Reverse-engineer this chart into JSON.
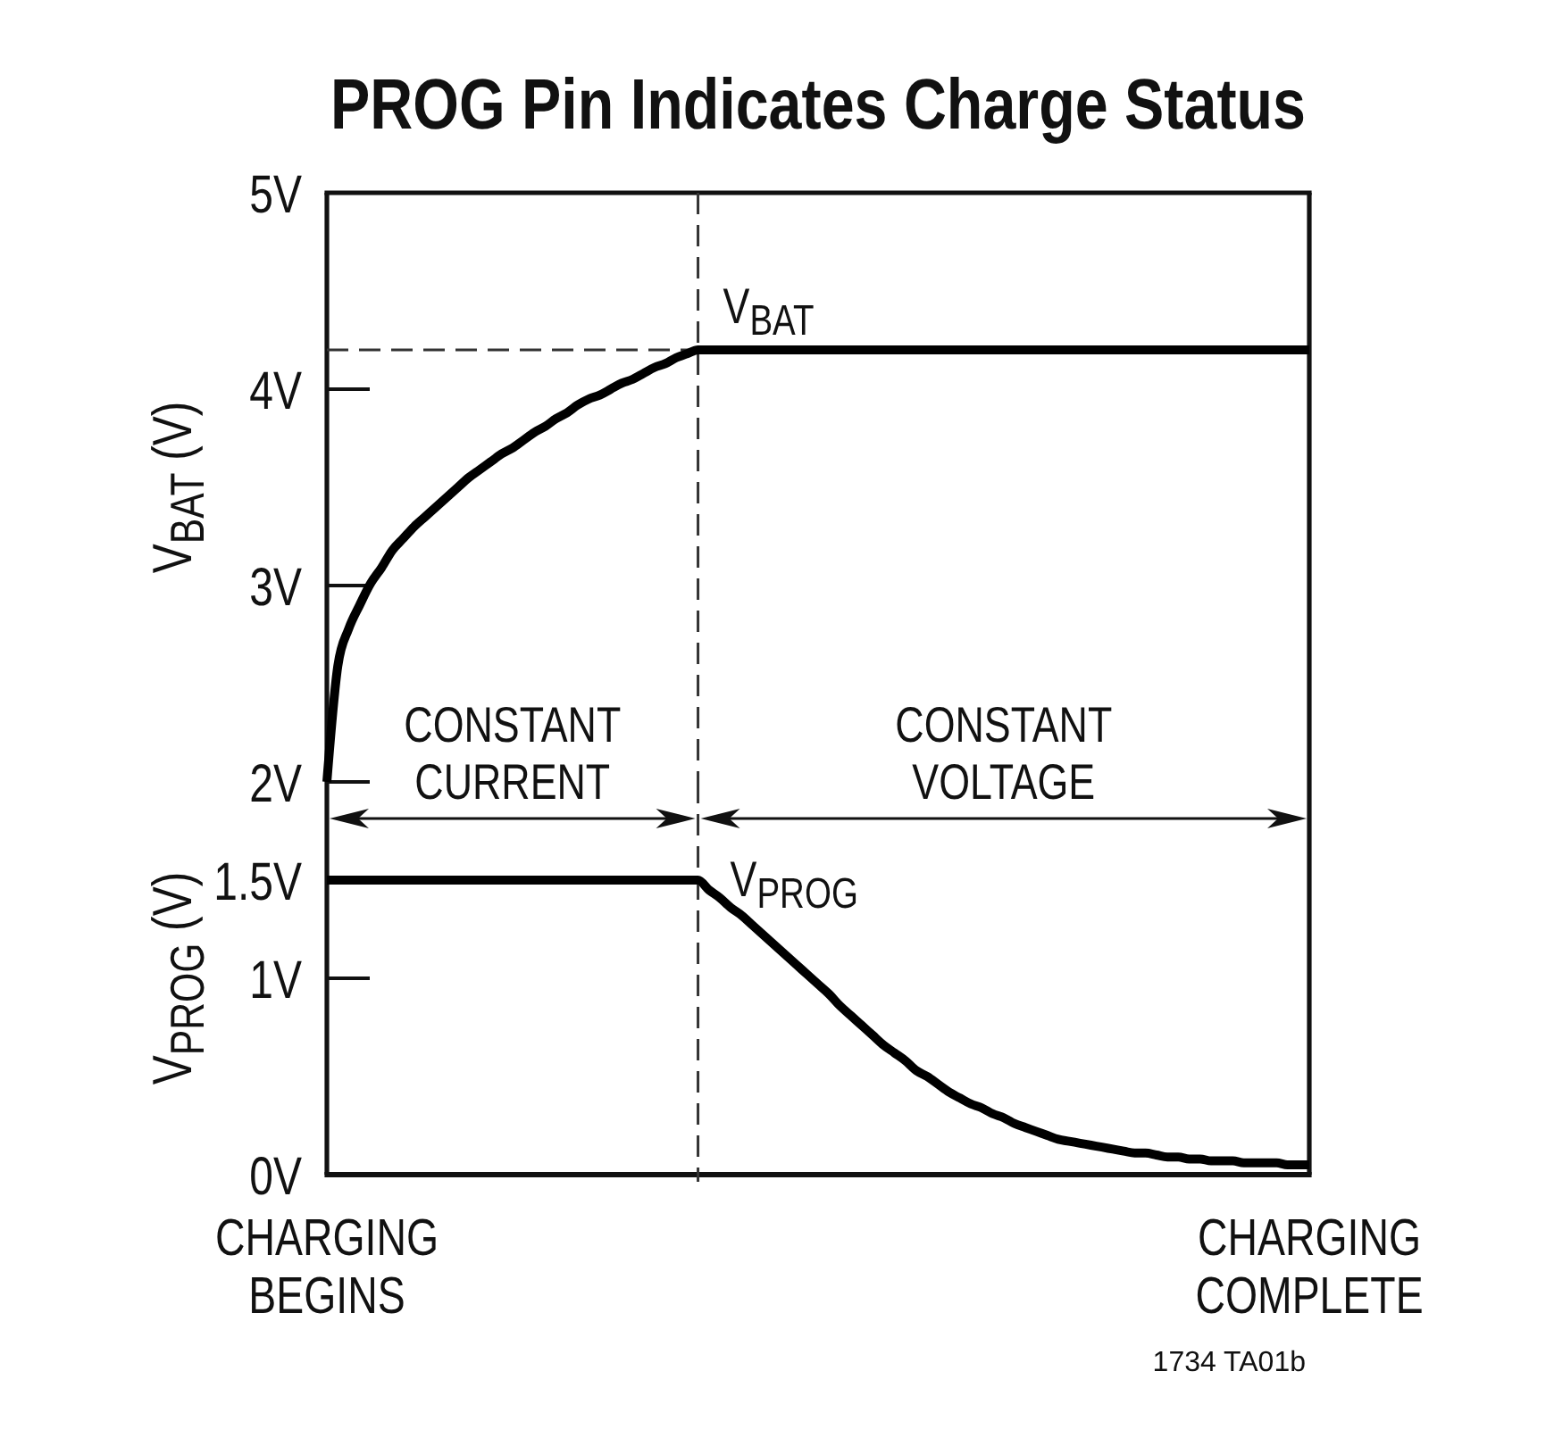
{
  "chart_data": [
    {
      "type": "line",
      "title": "PROG Pin Indicates Charge Status",
      "ylabel": "V$_{BAT}$ (V)",
      "categories": [
        null,
        null,
        null,
        null,
        null,
        null,
        null,
        null,
        null,
        null,
        null,
        null,
        null,
        null,
        null,
        null,
        null,
        null,
        null,
        null,
        null,
        null,
        null,
        null,
        null,
        null,
        null,
        null,
        null,
        null,
        null,
        null,
        null,
        null,
        null,
        null,
        null,
        null,
        null,
        null,
        null,
        null,
        null,
        null,
        null,
        null,
        null,
        null,
        null,
        null,
        null,
        null,
        null,
        null,
        null,
        null,
        null,
        null,
        null,
        null,
        null,
        null,
        null,
        null,
        null,
        null,
        null,
        null,
        null,
        null,
        null,
        null,
        null,
        null,
        null,
        null,
        null,
        null,
        null,
        null,
        null,
        null,
        null,
        null,
        null,
        null,
        null,
        null,
        null,
        null,
        null
      ],
      "ylim": [
        2,
        5
      ],
      "yticks": [
        {
          "value": 2,
          "label": "2V"
        },
        {
          "value": 3,
          "label": "3V"
        },
        {
          "value": 4,
          "label": "4V"
        },
        {
          "value": 5,
          "label": "5V"
        }
      ],
      "series": [
        {
          "name": "V$_{BAT}$",
          "color": "#000000",
          "values": [
            2.0,
            2.59,
            2.78,
            2.9,
            3.01,
            3.09,
            3.18,
            3.24,
            3.3,
            3.35,
            3.4,
            3.45,
            3.5,
            3.55,
            3.59,
            3.63,
            3.67,
            3.7,
            3.74,
            3.78,
            3.81,
            3.85,
            3.88,
            3.92,
            3.95,
            3.97,
            4.0,
            4.03,
            4.05,
            4.08,
            4.11,
            4.13,
            4.16,
            4.18,
            4.2,
            4.2,
            4.2,
            4.2,
            4.2,
            4.2,
            4.2,
            4.2,
            4.2,
            4.2,
            4.2,
            4.2,
            4.2,
            4.2,
            4.2,
            4.2,
            4.2,
            4.2,
            4.2,
            4.2,
            4.2,
            4.2,
            4.2,
            4.2,
            4.2,
            4.2,
            4.2,
            4.2,
            4.2,
            4.2,
            4.2,
            4.2,
            4.2,
            4.2,
            4.2,
            4.2,
            4.2,
            4.2,
            4.2,
            4.2,
            4.2,
            4.2,
            4.2,
            4.2,
            4.2,
            4.2,
            4.2,
            4.2,
            4.2,
            4.2,
            4.2,
            4.2,
            4.2,
            4.2,
            4.2,
            4.2,
            4.2
          ]
        }
      ],
      "ref_lines": [
        {
          "axis": "y",
          "value": 4.2,
          "line_style": "dashed"
        }
      ],
      "annotations": [
        "CONSTANT\nCURRENT",
        "CONSTANT\nVOLTAGE"
      ]
    },
    {
      "type": "line",
      "ylabel": "V$_{PROG}$ (V)",
      "categories": [
        "CHARGING\nBEGINS",
        null,
        null,
        null,
        null,
        null,
        null,
        null,
        null,
        null,
        null,
        null,
        null,
        null,
        null,
        null,
        null,
        null,
        null,
        null,
        null,
        null,
        null,
        null,
        null,
        null,
        null,
        null,
        null,
        null,
        null,
        null,
        null,
        null,
        null,
        null,
        null,
        null,
        null,
        null,
        null,
        null,
        null,
        null,
        null,
        null,
        null,
        null,
        null,
        null,
        null,
        null,
        null,
        null,
        null,
        null,
        null,
        null,
        null,
        null,
        null,
        null,
        null,
        null,
        null,
        null,
        null,
        null,
        null,
        null,
        null,
        null,
        null,
        null,
        null,
        null,
        null,
        null,
        null,
        null,
        null,
        null,
        null,
        null,
        null,
        null,
        null,
        null,
        null,
        null,
        "CHARGING\nCOMPLETE"
      ],
      "ylim": [
        0,
        2
      ],
      "yticks": [
        {
          "value": 0,
          "label": "0V"
        },
        {
          "value": 1,
          "label": "1V"
        },
        {
          "value": 1.5,
          "label": "1.5V"
        }
      ],
      "series": [
        {
          "name": "V$_{PROG}$",
          "color": "#000000",
          "values": [
            1.5,
            1.5,
            1.5,
            1.5,
            1.5,
            1.5,
            1.5,
            1.5,
            1.5,
            1.5,
            1.5,
            1.5,
            1.5,
            1.5,
            1.5,
            1.5,
            1.5,
            1.5,
            1.5,
            1.5,
            1.5,
            1.5,
            1.5,
            1.5,
            1.5,
            1.5,
            1.5,
            1.5,
            1.5,
            1.5,
            1.5,
            1.5,
            1.5,
            1.5,
            1.5,
            1.45,
            1.41,
            1.36,
            1.32,
            1.27,
            1.22,
            1.17,
            1.12,
            1.07,
            1.02,
            0.97,
            0.92,
            0.86,
            0.81,
            0.76,
            0.71,
            0.66,
            0.62,
            0.58,
            0.53,
            0.5,
            0.46,
            0.42,
            0.39,
            0.36,
            0.34,
            0.31,
            0.29,
            0.26,
            0.24,
            0.22,
            0.2,
            0.18,
            0.17,
            0.16,
            0.15,
            0.14,
            0.13,
            0.12,
            0.11,
            0.11,
            0.1,
            0.09,
            0.09,
            0.08,
            0.08,
            0.07,
            0.07,
            0.07,
            0.06,
            0.06,
            0.06,
            0.06,
            0.05,
            0.05,
            0.05
          ]
        }
      ],
      "annotations": [
        "1734 TA01b"
      ]
    }
  ]
}
